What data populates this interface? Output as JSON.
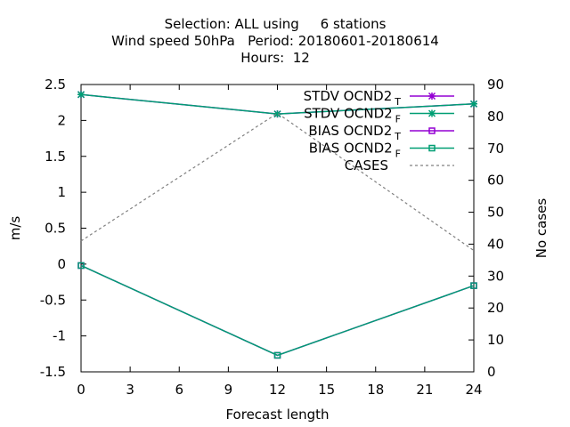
{
  "chart_data": {
    "type": "line",
    "title_lines": [
      "Selection: ALL using     6 stations",
      "Wind speed 50hPa   Period: 20180601-20180614",
      "Hours:  12"
    ],
    "xlabel": "Forecast length",
    "ylabel": "m/s",
    "y2label": "No cases",
    "x": [
      0,
      12,
      24
    ],
    "xlim": [
      0,
      24
    ],
    "xticks": [
      0,
      3,
      6,
      9,
      12,
      15,
      18,
      21,
      24
    ],
    "ylim": [
      -1.5,
      2.5
    ],
    "yticks": [
      "-1.5",
      "-1",
      "-0.5",
      "0",
      "0.5",
      "1",
      "1.5",
      "2",
      "2.5"
    ],
    "y2lim": [
      0,
      90
    ],
    "y2ticks": [
      0,
      10,
      20,
      30,
      40,
      50,
      60,
      70,
      80,
      90
    ],
    "grid": false,
    "legend_position": "top-right",
    "series": [
      {
        "name": "STDV OCND2",
        "subscript": "T",
        "axis": "y",
        "marker": "star",
        "color": "#9400d3",
        "values": [
          2.36,
          2.09,
          2.23
        ]
      },
      {
        "name": "STDV OCND2",
        "subscript": "F",
        "axis": "y",
        "marker": "star",
        "color": "#009e73",
        "values": [
          2.36,
          2.09,
          2.23
        ]
      },
      {
        "name": "BIAS OCND2",
        "subscript": "T",
        "axis": "y",
        "marker": "square",
        "color": "#9400d3",
        "values": [
          -0.02,
          -1.27,
          -0.3
        ]
      },
      {
        "name": "BIAS OCND2",
        "subscript": "F",
        "axis": "y",
        "marker": "square",
        "color": "#009e73",
        "values": [
          -0.02,
          -1.27,
          -0.3
        ]
      },
      {
        "name": "CASES",
        "axis": "y2",
        "marker": "none",
        "dashed": true,
        "color": "#808080",
        "values": [
          41,
          81,
          38
        ]
      }
    ]
  }
}
